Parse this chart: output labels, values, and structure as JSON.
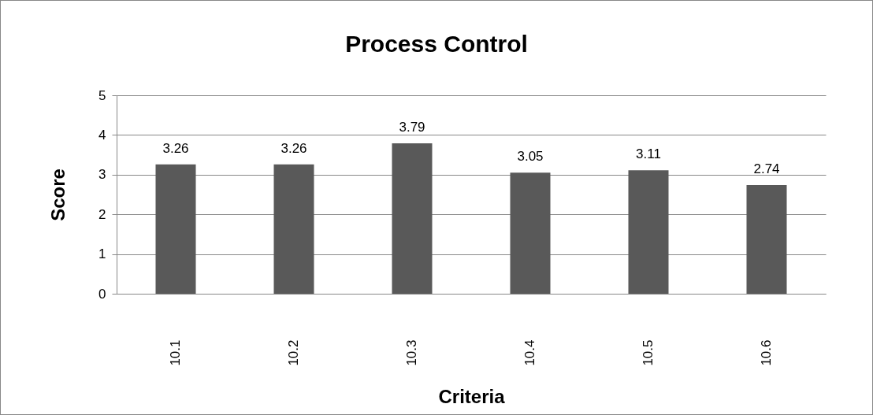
{
  "chart_data": {
    "type": "bar",
    "title": "Process Control",
    "xlabel": "Criteria",
    "ylabel": "Score",
    "categories": [
      "10.1",
      "10.2",
      "10.3",
      "10.4",
      "10.5",
      "10.6"
    ],
    "values": [
      3.26,
      3.26,
      3.79,
      3.05,
      3.11,
      2.74
    ],
    "color": "#595959",
    "ylim": [
      0,
      5
    ],
    "yticks": [
      0,
      1,
      2,
      3,
      4,
      5
    ],
    "grid": "y",
    "data_labels": true
  }
}
